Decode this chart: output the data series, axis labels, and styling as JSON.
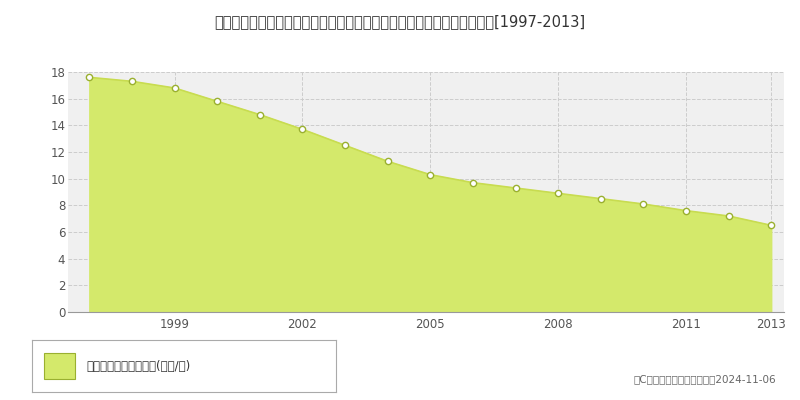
{
  "title": "長野県上水内郡信濃町大字柏原字役屋敷６０番１　公示地価　地価推移[1997-2013]",
  "years": [
    1997,
    1998,
    1999,
    2000,
    2001,
    2002,
    2003,
    2004,
    2005,
    2006,
    2007,
    2008,
    2009,
    2010,
    2011,
    2012,
    2013
  ],
  "values": [
    17.6,
    17.3,
    16.8,
    15.8,
    14.8,
    13.7,
    12.5,
    11.3,
    10.3,
    9.7,
    9.3,
    8.9,
    8.5,
    8.1,
    7.6,
    7.2,
    6.5
  ],
  "fill_color": "#d4e96b",
  "line_color": "#c8dc50",
  "marker_facecolor": "#ffffff",
  "marker_edgecolor": "#9ab030",
  "background_color": "#ffffff",
  "plot_bg_color": "#f0f0f0",
  "grid_color": "#cccccc",
  "ylim": [
    0,
    18
  ],
  "yticks": [
    0,
    2,
    4,
    6,
    8,
    10,
    12,
    14,
    16,
    18
  ],
  "xticks": [
    1999,
    2002,
    2005,
    2008,
    2011,
    2013
  ],
  "legend_label": "公示地価　平均坪単価(万円/坪)",
  "copyright_text": "（C）土地価格ドットコム　2024-11-06"
}
